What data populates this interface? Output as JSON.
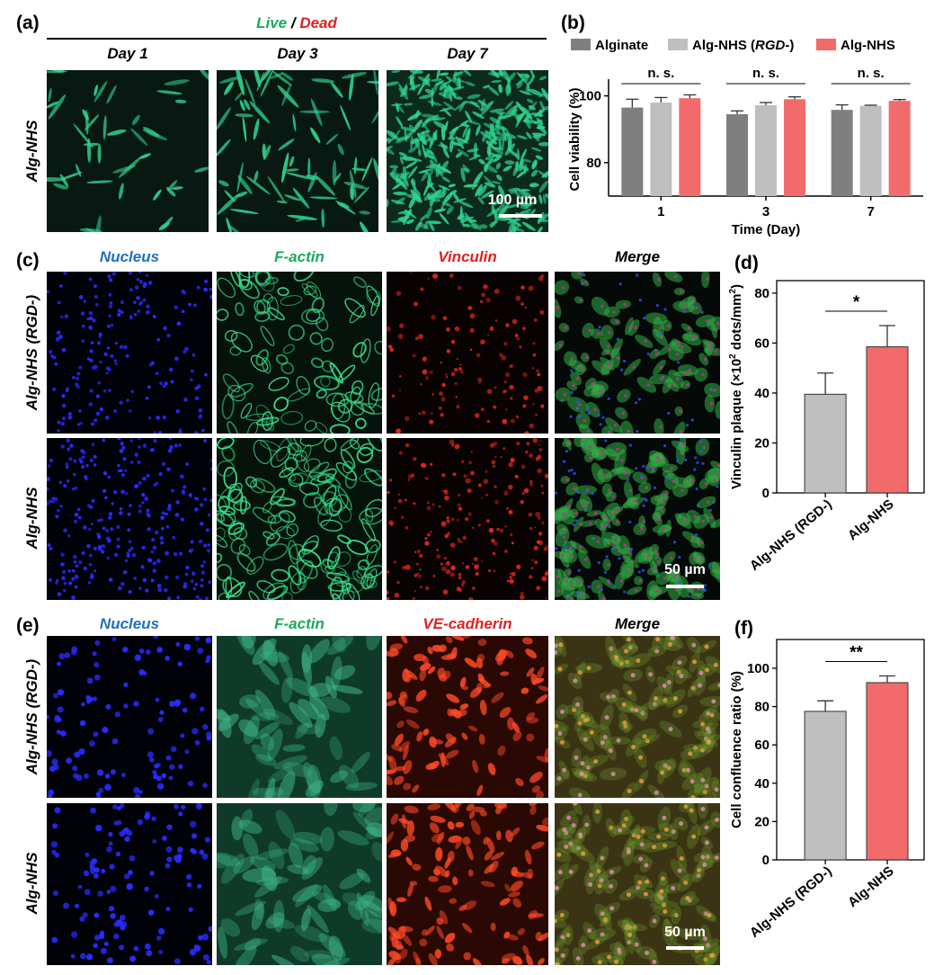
{
  "figure": {
    "a": {
      "label": "(a)",
      "title_live": "Live",
      "title_sep": " / ",
      "title_dead": "Dead",
      "columns": [
        "Day 1",
        "Day 3",
        "Day 7"
      ],
      "row": "Alg-NHS",
      "scalebar": "100 µm"
    },
    "c": {
      "label": "(c)",
      "columns": [
        "Nucleus",
        "F-actin",
        "Vinculin",
        "Merge"
      ],
      "rows": [
        "Alg-NHS (RGD-)",
        "Alg-NHS"
      ],
      "scalebar": "50 µm"
    },
    "e": {
      "label": "(e)",
      "columns": [
        "Nucleus",
        "F-actin",
        "VE-cadherin",
        "Merge"
      ],
      "rows": [
        "Alg-NHS (RGD-)",
        "Alg-NHS"
      ],
      "scalebar": "50 µm"
    },
    "b_label": "(b)",
    "d_label": "(d)",
    "f_label": "(f)"
  },
  "colors": {
    "live": "#1aaa5a",
    "dead": "#e02020",
    "nucleus": "#1f6fc0",
    "factin": "#1aaa5a",
    "red": "#e02020",
    "alginate": "#7f7f7f",
    "rgd": "#bfbfbf",
    "nhs": "#f26b6b"
  },
  "chart_data": [
    {
      "id": "b",
      "type": "bar",
      "categories": [
        "1",
        "3",
        "7"
      ],
      "series": [
        {
          "name": "Alginate",
          "values": [
            96.5,
            94.5,
            95.8
          ],
          "errors": [
            2.5,
            1.0,
            1.5
          ],
          "color": "#7f7f7f"
        },
        {
          "name": "Alg-NHS (RGD-)",
          "name_parts": [
            "Alg-NHS (",
            "RGD-",
            ")"
          ],
          "values": [
            98.0,
            97.2,
            97.0
          ],
          "errors": [
            1.5,
            0.8,
            0.2
          ],
          "color": "#bfbfbf"
        },
        {
          "name": "Alg-NHS",
          "values": [
            99.3,
            99.0,
            98.5
          ],
          "errors": [
            1.0,
            0.7,
            0.4
          ],
          "color": "#f26b6b"
        }
      ],
      "xlabel": "Time (Day)",
      "ylabel": "Cell viability (%)",
      "ylim": [
        70,
        105
      ],
      "yticks": [
        80,
        100
      ],
      "annotations": [
        "n. s.",
        "n. s.",
        "n. s."
      ],
      "legend": "top"
    },
    {
      "id": "d",
      "type": "bar",
      "categories": [
        "Alg-NHS (RGD-)",
        "Alg-NHS"
      ],
      "values": [
        39.5,
        58.5
      ],
      "errors": [
        8.5,
        8.5
      ],
      "colors": [
        "#bfbfbf",
        "#f26b6b"
      ],
      "ylabel": "Vinculin plaque (×10² dots/mm²)",
      "ylabel_parts": [
        "Vinculin plaque (×10",
        "2",
        " dots/mm",
        "2",
        ")"
      ],
      "ylim": [
        0,
        85
      ],
      "yticks": [
        0,
        20,
        40,
        60,
        80
      ],
      "significance": "*"
    },
    {
      "id": "f",
      "type": "bar",
      "categories": [
        "Alg-NHS (RGD-)",
        "Alg-NHS"
      ],
      "values": [
        77.5,
        92.5
      ],
      "errors": [
        5.5,
        3.5
      ],
      "colors": [
        "#bfbfbf",
        "#f26b6b"
      ],
      "ylabel": "Cell confluence ratio (%)",
      "ylim": [
        0,
        115
      ],
      "yticks": [
        0,
        20,
        40,
        60,
        80,
        100
      ],
      "significance": "**"
    }
  ]
}
